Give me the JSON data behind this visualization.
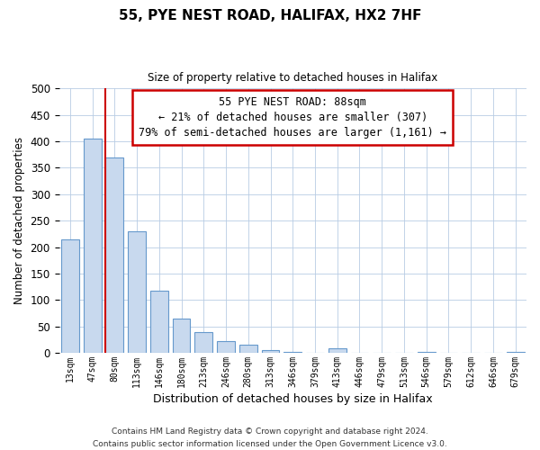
{
  "title": "55, PYE NEST ROAD, HALIFAX, HX2 7HF",
  "subtitle": "Size of property relative to detached houses in Halifax",
  "xlabel": "Distribution of detached houses by size in Halifax",
  "ylabel": "Number of detached properties",
  "bar_color": "#c8d9ee",
  "bar_edge_color": "#6699cc",
  "marker_line_color": "#cc0000",
  "annotation_text": "55 PYE NEST ROAD: 88sqm\n← 21% of detached houses are smaller (307)\n79% of semi-detached houses are larger (1,161) →",
  "annotation_box_color": "#ffffff",
  "annotation_box_edge_color": "#cc0000",
  "footer_line1": "Contains HM Land Registry data © Crown copyright and database right 2024.",
  "footer_line2": "Contains public sector information licensed under the Open Government Licence v3.0.",
  "categories": [
    "13sqm",
    "47sqm",
    "80sqm",
    "113sqm",
    "146sqm",
    "180sqm",
    "213sqm",
    "246sqm",
    "280sqm",
    "313sqm",
    "346sqm",
    "379sqm",
    "413sqm",
    "446sqm",
    "479sqm",
    "513sqm",
    "546sqm",
    "579sqm",
    "612sqm",
    "646sqm",
    "679sqm"
  ],
  "values": [
    215,
    405,
    370,
    230,
    118,
    65,
    40,
    22,
    15,
    5,
    2,
    0,
    8,
    0,
    0,
    0,
    2,
    0,
    0,
    0,
    2
  ],
  "marker_bar_index": 2,
  "ylim": [
    0,
    500
  ],
  "yticks": [
    0,
    50,
    100,
    150,
    200,
    250,
    300,
    350,
    400,
    450,
    500
  ],
  "figsize": [
    6.0,
    5.0
  ],
  "dpi": 100
}
